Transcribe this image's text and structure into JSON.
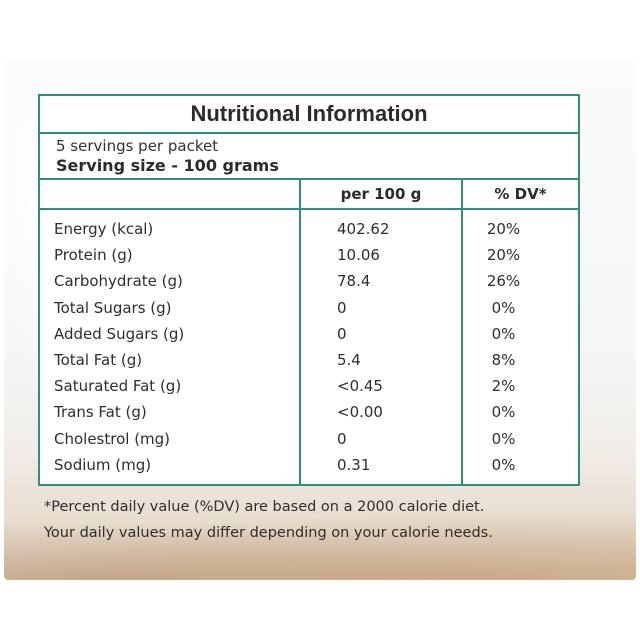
{
  "label": {
    "title": "Nutritional Information",
    "servings_per_packet": "5 servings per packet",
    "serving_size": "Serving size - 100 grams",
    "columns": {
      "per_100g": "per 100 g",
      "dv": "% DV*"
    },
    "rows": [
      {
        "name": "Energy (kcal)",
        "value": "402.62",
        "dv": "20%"
      },
      {
        "name": "Protein (g)",
        "value": "10.06",
        "dv": "20%"
      },
      {
        "name": "Carbohydrate (g)",
        "value": "78.4",
        "dv": "26%"
      },
      {
        "name": "Total Sugars (g)",
        "value": "0",
        "dv": "0%"
      },
      {
        "name": "Added Sugars (g)",
        "value": "0",
        "dv": "0%"
      },
      {
        "name": "Total Fat (g)",
        "value": "5.4",
        "dv": "8%"
      },
      {
        "name": "Saturated Fat (g)",
        "value": "<0.45",
        "dv": "2%"
      },
      {
        "name": "Trans Fat (g)",
        "value": "<0.00",
        "dv": "0%"
      },
      {
        "name": "Cholestrol (mg)",
        "value": "0",
        "dv": "0%"
      },
      {
        "name": "Sodium (mg)",
        "value": "0.31",
        "dv": "0%"
      }
    ]
  },
  "footnote": {
    "line1": "*Percent daily value (%DV) are based on a 2000 calorie diet.",
    "line2": "Your daily values may differ depending on your calorie needs."
  },
  "colors": {
    "border": "#2f8f7b",
    "text": "#2e2e2e"
  }
}
